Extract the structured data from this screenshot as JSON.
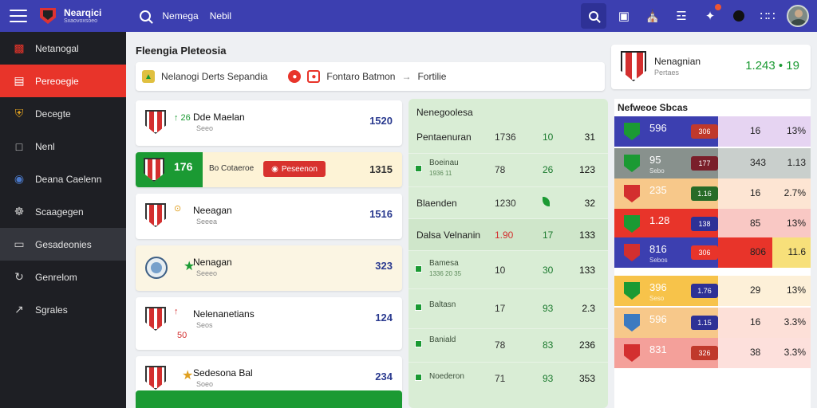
{
  "header": {
    "brand_title": "Nearqici",
    "brand_sub": "Sxaovoxsoeo",
    "link_1": "Nemega",
    "link_2": "Nebil",
    "icons": [
      "search-icon",
      "square-icon",
      "bag-icon",
      "gift-icon",
      "bell-icon",
      "circle-icon",
      "grid-icon"
    ]
  },
  "sidebar": {
    "items": [
      {
        "label": "Netanogal",
        "icon": "chart-icon"
      },
      {
        "label": "Pereoegie",
        "icon": "bar-chart-icon"
      },
      {
        "label": "Decegte",
        "icon": "shield-icon"
      },
      {
        "label": "Nenl",
        "icon": "square-icon"
      },
      {
        "label": "Deana Caelenn",
        "icon": "globe-icon"
      },
      {
        "label": "Scaagegen",
        "icon": "group-icon"
      },
      {
        "label": "Gesadeonies",
        "icon": "screen-icon"
      },
      {
        "label": "Genrelom",
        "icon": "refresh-icon"
      },
      {
        "label": "Sgrales",
        "icon": "trend-icon"
      }
    ]
  },
  "main": {
    "title": "Fleengia Pleteosia",
    "filter": {
      "item_1": "Nelanogi Derts Sepandia",
      "item_2": "Fontaro Batmon",
      "arrow": "→",
      "item_3": "Fortilie"
    }
  },
  "matches": [
    {
      "name": "Dde Maelan",
      "sub": "Seeo",
      "mini": "↑ 26",
      "score": "1520"
    },
    {
      "live": true,
      "block_score": "176",
      "text": "Bo Cotaeroe",
      "button": "Peseenon",
      "score": "1315"
    },
    {
      "name": "Neeagan",
      "sub": "Seeea",
      "mini": "⊙",
      "score": "1516"
    },
    {
      "name": "Nenagan",
      "sub": "Seeeo",
      "score": "323"
    },
    {
      "name": "Nelenanetians",
      "sub": "Seos",
      "mini": "↑",
      "extra": "50",
      "score": "124"
    },
    {
      "name": "Sedesona Bal",
      "sub": "Soeo",
      "score": "234"
    }
  ],
  "mid": {
    "title": "Nenegoolesa",
    "rows": [
      {
        "label": "Pentaenuran",
        "c1": "1736",
        "c2": "10",
        "c3": "31"
      },
      {
        "check": true,
        "label": "Boeinau",
        "sub": "1936 11",
        "c1": "78",
        "c2": "26",
        "c3": "123"
      },
      {
        "label": "Blaenden",
        "c1": "1230",
        "leaf": true,
        "c3": "32"
      },
      {
        "label": "Dalsa Velnanin",
        "c1": "1.90",
        "red": true,
        "c2": "17",
        "c3": "133",
        "hl": true
      },
      {
        "check": true,
        "label": "Bamesa",
        "sub": "1336 20 35",
        "c1": "10",
        "c2": "30",
        "c3": "133"
      },
      {
        "check": true,
        "label": "Baltasn",
        "c1": "17",
        "c2": "93",
        "c3": "2.3"
      },
      {
        "check": true,
        "label": "Baniald",
        "c1": "78",
        "c2": "83",
        "c3": "236"
      },
      {
        "check": true,
        "label": "Noederon",
        "c1": "71",
        "c2": "93",
        "c3": "353"
      }
    ]
  },
  "top_card": {
    "title": "Nenagnian",
    "sub": "Pertaes",
    "value": "1.243 • 19"
  },
  "standings": {
    "title": "Nefweoe Sbcas",
    "rows": [
      {
        "v": "596",
        "pill": "306",
        "n1": "16",
        "n2": "13%",
        "bg": "#3c3fb0",
        "right": "#e6d4f2",
        "fg": "#fff",
        "pillbg": "#c0392b",
        "ico": "#1b9a33"
      },
      {
        "v": "95",
        "sub": "Sebo",
        "pill": "177",
        "n1": "343",
        "n2": "1.13",
        "bg": "#88918d",
        "right": "#c9cfcc",
        "fg": "#fff",
        "pillbg": "#7a1f2a",
        "ico": "#1b9a33"
      },
      {
        "v": "235",
        "pill": "1.16",
        "n1": "16",
        "n2": "2.7%",
        "bg": "#f7c88a",
        "right": "#fde5d3",
        "fg": "#fff",
        "pillbg": "#276b27",
        "ico": "#d32f2f"
      },
      {
        "v": "1.28",
        "pill": "138",
        "n1": "85",
        "n2": "13%",
        "bg": "#e8342a",
        "right": "#f9c8c4",
        "fg": "#fff",
        "pillbg": "#2e3196",
        "ico": "#1b9a33"
      },
      {
        "v": "816",
        "sub": "Sebos",
        "pill": "306",
        "n1": "806",
        "n2": "11.6",
        "bg": "#3c3fb0",
        "right": "#e8342a",
        "fg": "#fff",
        "pillbg": "#e8342a",
        "ico": "#d32f2f",
        "last": "#f7e07a"
      },
      {
        "v": "396",
        "sub": "Seso",
        "pill": "1.76",
        "n1": "29",
        "n2": "13%",
        "bg": "#f7c34a",
        "right": "#fdf0d8",
        "fg": "#fff",
        "pillbg": "#2e3196",
        "ico": "#1b9a33"
      },
      {
        "v": "596",
        "pill": "1.15",
        "n1": "16",
        "n2": "3.3%",
        "bg": "#f7c88a",
        "right": "#fde0d8",
        "fg": "#fff",
        "pillbg": "#2e3196",
        "ico": "#3c7ac0"
      },
      {
        "v": "831",
        "pill": "326",
        "n1": "38",
        "n2": "3.3%",
        "bg": "#f4a09a",
        "right": "#fde0dc",
        "fg": "#fff",
        "pillbg": "#c0392b",
        "ico": "#d32f2f"
      }
    ]
  },
  "colors": {
    "accent": "#3c3fb0",
    "active": "#e8342a",
    "green": "#1b9a33"
  }
}
